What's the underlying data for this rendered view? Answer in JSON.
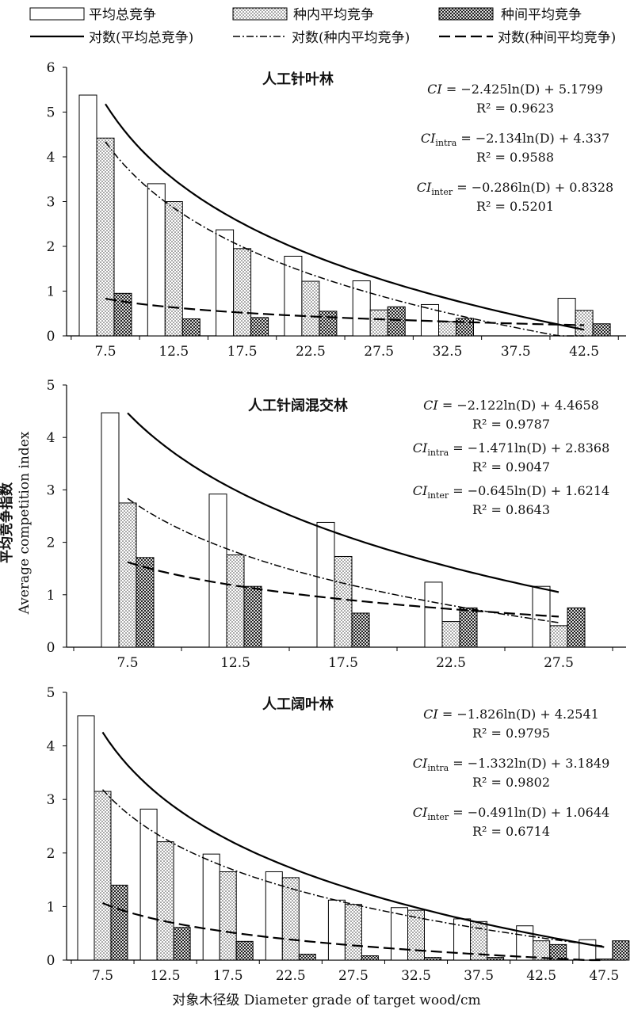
{
  "legend": {
    "items": [
      {
        "label": "平均总竞争",
        "kind": "bar",
        "pattern": "white"
      },
      {
        "label": "种内平均竞争",
        "kind": "bar",
        "pattern": "dots"
      },
      {
        "label": "种间平均竞争",
        "kind": "bar",
        "pattern": "check"
      },
      {
        "label": "对数(平均总竞争)",
        "kind": "line",
        "style": "solid"
      },
      {
        "label": "对数(种内平均竞争)",
        "kind": "line",
        "style": "dashdot"
      },
      {
        "label": "对数(种间平均竞争)",
        "kind": "line",
        "style": "dashed"
      }
    ]
  },
  "ylabel_cn": "平均竞争指数",
  "ylabel_en": "Average competition index",
  "xlabel": "对象木径级 Diameter grade of target wood/cm",
  "chart_data": [
    {
      "type": "bar",
      "title": "人工针叶林",
      "categories": [
        "7.5",
        "12.5",
        "17.5",
        "22.5",
        "27.5",
        "32.5",
        "37.5",
        "42.5"
      ],
      "ylim": [
        0,
        6
      ],
      "yticks": [
        "0",
        "1",
        "2",
        "3",
        "4",
        "5",
        "6"
      ],
      "series": [
        {
          "name": "平均总竞争",
          "values": [
            5.38,
            3.4,
            2.37,
            1.78,
            1.23,
            0.7,
            null,
            0.84
          ]
        },
        {
          "name": "种内平均竞争",
          "values": [
            4.42,
            3.0,
            1.95,
            1.22,
            0.58,
            0.32,
            null,
            0.57
          ]
        },
        {
          "name": "种间平均竞争",
          "values": [
            0.95,
            0.38,
            0.41,
            0.55,
            0.65,
            0.39,
            null,
            0.27
          ]
        }
      ],
      "fits": [
        {
          "name": "对数(平均总竞争)",
          "a": -2.425,
          "b": 5.1799
        },
        {
          "name": "对数(种内平均竞争)",
          "a": -2.134,
          "b": 4.337
        },
        {
          "name": "对数(种间平均竞争)",
          "a": -0.286,
          "b": 0.8328
        }
      ],
      "equations": [
        {
          "lhs": "CI",
          "sub": "",
          "rhs": " = −2.425ln(D) + 5.1799",
          "r2": "R² = 0.9623"
        },
        {
          "lhs": "CI",
          "sub": "intra",
          "rhs": " = −2.134ln(D) + 4.337",
          "r2": "R² = 0.9588"
        },
        {
          "lhs": "CI",
          "sub": "inter",
          "rhs": " = −0.286ln(D) + 0.8328",
          "r2": "R² = 0.5201"
        }
      ]
    },
    {
      "type": "bar",
      "title": "人工针阔混交林",
      "categories": [
        "7.5",
        "12.5",
        "17.5",
        "22.5",
        "27.5"
      ],
      "ylim": [
        0,
        5
      ],
      "yticks": [
        "0",
        "1",
        "2",
        "3",
        "4",
        "5"
      ],
      "series": [
        {
          "name": "平均总竞争",
          "values": [
            4.47,
            2.92,
            2.38,
            1.24,
            1.16
          ]
        },
        {
          "name": "种内平均竞争",
          "values": [
            2.75,
            1.76,
            1.73,
            0.49,
            0.41
          ]
        },
        {
          "name": "种间平均竞争",
          "values": [
            1.71,
            1.16,
            0.65,
            0.75,
            0.75
          ]
        }
      ],
      "fits": [
        {
          "name": "对数(平均总竞争)",
          "a": -2.122,
          "b": 4.4658
        },
        {
          "name": "对数(种内平均竞争)",
          "a": -1.471,
          "b": 2.8368
        },
        {
          "name": "对数(种间平均竞争)",
          "a": -0.645,
          "b": 1.6214
        }
      ],
      "equations": [
        {
          "lhs": "CI",
          "sub": "",
          "rhs": " = −2.122ln(D) + 4.4658",
          "r2": "R² = 0.9787"
        },
        {
          "lhs": "CI",
          "sub": "intra",
          "rhs": " = −1.471ln(D) + 2.8368",
          "r2": "R² = 0.9047"
        },
        {
          "lhs": "CI",
          "sub": "inter",
          "rhs": " = −0.645ln(D) + 1.6214",
          "r2": "R² = 0.8643"
        }
      ]
    },
    {
      "type": "bar",
      "title": "人工阔叶林",
      "categories": [
        "7.5",
        "12.5",
        "17.5",
        "22.5",
        "27.5",
        "32.5",
        "37.5",
        "42.5",
        "47.5"
      ],
      "ylim": [
        0,
        5
      ],
      "yticks": [
        "0",
        "1",
        "2",
        "3",
        "4",
        "5"
      ],
      "series": [
        {
          "name": "平均总竞争",
          "values": [
            4.56,
            2.82,
            1.98,
            1.65,
            1.12,
            0.98,
            0.77,
            0.64,
            0.38
          ]
        },
        {
          "name": "种内平均竞争",
          "values": [
            3.15,
            2.21,
            1.65,
            1.54,
            1.04,
            0.93,
            0.72,
            0.36,
            0.02
          ]
        },
        {
          "name": "种间平均竞争",
          "values": [
            1.4,
            0.61,
            0.35,
            0.11,
            0.08,
            0.05,
            0.05,
            0.29,
            0.36
          ]
        }
      ],
      "fits": [
        {
          "name": "对数(平均总竞争)",
          "a": -1.826,
          "b": 4.2541
        },
        {
          "name": "对数(种内平均竞争)",
          "a": -1.332,
          "b": 3.1849
        },
        {
          "name": "对数(种间平均竞争)",
          "a": -0.491,
          "b": 1.0644
        }
      ],
      "equations": [
        {
          "lhs": "CI",
          "sub": "",
          "rhs": " = −1.826ln(D) + 4.2541",
          "r2": "R² = 0.9795"
        },
        {
          "lhs": "CI",
          "sub": "intra",
          "rhs": " = −1.332ln(D) + 3.1849",
          "r2": "R² = 0.9802"
        },
        {
          "lhs": "CI",
          "sub": "inter",
          "rhs": " = −0.491ln(D) + 1.0644",
          "r2": "R² = 0.6714"
        }
      ]
    }
  ]
}
